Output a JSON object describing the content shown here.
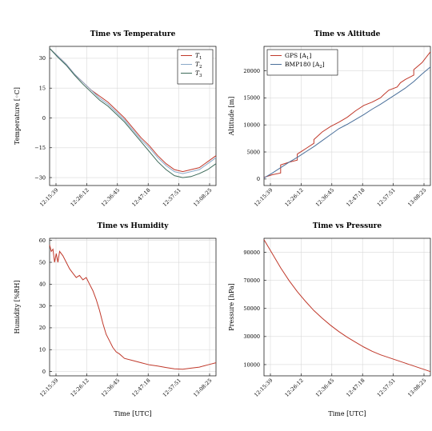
{
  "colors": {
    "red": "#c0392b",
    "blue": "#4a6f9a",
    "gray": "#888888",
    "darkgreen": "#3d6b5a",
    "lightblue": "#8aa8c8"
  },
  "time_ticks": [
    "12:15:39",
    "12:26:12",
    "12:36:45",
    "12:47:18",
    "12:57:51",
    "13:08:25"
  ],
  "chart_data": [
    {
      "id": "temperature",
      "type": "line",
      "title": "Time vs Temperature",
      "xlabel": "",
      "ylabel": "Temperature [◦C]",
      "xlim": [
        0,
        1
      ],
      "ylim": [
        -34,
        36
      ],
      "yticks": [
        30,
        15,
        0,
        -15,
        -30
      ],
      "ytick_labels": [
        "30",
        "15",
        "0",
        "−15",
        "−30"
      ],
      "legend": "top-right",
      "grid": true,
      "series": [
        {
          "name": "T",
          "sub": "1",
          "color": "red",
          "x": [
            0,
            0.05,
            0.1,
            0.15,
            0.2,
            0.25,
            0.3,
            0.35,
            0.4,
            0.45,
            0.5,
            0.55,
            0.6,
            0.65,
            0.7,
            0.75,
            0.8,
            0.85,
            0.9,
            0.95,
            1.0
          ],
          "y": [
            35,
            31,
            27,
            22,
            18,
            14,
            11,
            8,
            4,
            0,
            -5,
            -10,
            -14,
            -19,
            -23,
            -26,
            -27,
            -26,
            -25,
            -22,
            -19
          ]
        },
        {
          "name": "T",
          "sub": "2",
          "color": "lightblue",
          "x": [
            0,
            0.05,
            0.1,
            0.15,
            0.2,
            0.25,
            0.3,
            0.35,
            0.4,
            0.45,
            0.5,
            0.55,
            0.6,
            0.65,
            0.7,
            0.75,
            0.8,
            0.85,
            0.9,
            0.95,
            1.0
          ],
          "y": [
            35,
            31,
            27,
            22,
            18,
            14,
            10,
            7,
            3,
            -1,
            -6,
            -11,
            -15,
            -20,
            -24,
            -27,
            -28,
            -27,
            -26,
            -23,
            -20
          ]
        },
        {
          "name": "T",
          "sub": "3",
          "color": "darkgreen",
          "x": [
            0,
            0.05,
            0.1,
            0.15,
            0.2,
            0.25,
            0.3,
            0.35,
            0.4,
            0.45,
            0.5,
            0.55,
            0.6,
            0.65,
            0.7,
            0.75,
            0.8,
            0.85,
            0.9,
            0.95,
            1.0
          ],
          "y": [
            35,
            30.5,
            26.5,
            21.5,
            17,
            13,
            9,
            6,
            2,
            -2,
            -7,
            -12,
            -17,
            -22,
            -26,
            -29,
            -30,
            -29.5,
            -28,
            -26,
            -23
          ]
        }
      ]
    },
    {
      "id": "altitude",
      "type": "line",
      "title": "Time vs Altitude",
      "xlabel": "",
      "ylabel": "Altitude [m]",
      "xlim": [
        0,
        1
      ],
      "ylim": [
        -1200,
        24500
      ],
      "yticks": [
        20000,
        15000,
        10000,
        5000,
        0
      ],
      "ytick_labels": [
        "20000",
        "15000",
        "10000",
        "5000",
        "0"
      ],
      "legend": "top-left",
      "grid": true,
      "series": [
        {
          "name": "GPS [A",
          "sub": "1",
          "color": "red",
          "x": [
            0,
            0.05,
            0.1,
            0.1,
            0.15,
            0.2,
            0.2,
            0.25,
            0.3,
            0.3,
            0.35,
            0.4,
            0.45,
            0.5,
            0.55,
            0.6,
            0.65,
            0.7,
            0.72,
            0.75,
            0.8,
            0.82,
            0.85,
            0.9,
            0.9,
            0.95,
            1.0
          ],
          "y": [
            300,
            800,
            1100,
            2600,
            3100,
            3500,
            4600,
            5600,
            6600,
            7300,
            8700,
            9700,
            10500,
            11400,
            12600,
            13600,
            14200,
            15000,
            15600,
            16400,
            17000,
            17800,
            18400,
            19200,
            20200,
            21500,
            23500
          ]
        },
        {
          "name": "BMP180 [A",
          "sub": "2",
          "color": "blue",
          "x": [
            0,
            0.05,
            0.1,
            0.15,
            0.2,
            0.25,
            0.3,
            0.35,
            0.4,
            0.45,
            0.5,
            0.55,
            0.6,
            0.65,
            0.7,
            0.75,
            0.8,
            0.85,
            0.9,
            0.95,
            1.0
          ],
          "y": [
            200,
            1100,
            2100,
            3100,
            4000,
            5000,
            6000,
            7100,
            8200,
            9300,
            10100,
            11000,
            11900,
            12900,
            13800,
            14800,
            15800,
            16800,
            18000,
            19400,
            20700
          ]
        }
      ]
    },
    {
      "id": "humidity",
      "type": "line",
      "title": "Time vs Humidity",
      "xlabel": "Time [UTC]",
      "ylabel": "Humidity [%RH]",
      "xlim": [
        0,
        1
      ],
      "ylim": [
        -2,
        61
      ],
      "yticks": [
        60,
        50,
        40,
        30,
        20,
        10,
        0
      ],
      "ytick_labels": [
        "60",
        "50",
        "40",
        "30",
        "20",
        "10",
        "0"
      ],
      "legend": "none",
      "grid": true,
      "series": [
        {
          "name": "",
          "color": "red",
          "x": [
            0,
            0.01,
            0.02,
            0.03,
            0.04,
            0.05,
            0.06,
            0.08,
            0.1,
            0.12,
            0.14,
            0.16,
            0.18,
            0.2,
            0.22,
            0.24,
            0.26,
            0.28,
            0.3,
            0.32,
            0.34,
            0.36,
            0.38,
            0.4,
            0.42,
            0.45,
            0.5,
            0.55,
            0.6,
            0.65,
            0.7,
            0.75,
            0.8,
            0.85,
            0.9,
            0.95,
            1.0
          ],
          "y": [
            58,
            55,
            56,
            50,
            54,
            50,
            55,
            53,
            50,
            47,
            45,
            43,
            44,
            42,
            43,
            40,
            37,
            33,
            28,
            22,
            17,
            14,
            11,
            9,
            8,
            6,
            5,
            4,
            3,
            2.5,
            1.8,
            1.2,
            1.0,
            1.5,
            2.0,
            3.0,
            4.0
          ]
        }
      ]
    },
    {
      "id": "pressure",
      "type": "line",
      "title": "Time vs Pressure",
      "xlabel": "Time [UTC]",
      "ylabel": "Pressure [hPa]",
      "xlim": [
        0,
        1
      ],
      "ylim": [
        2000,
        100000
      ],
      "yticks": [
        90000,
        70000,
        50000,
        30000,
        10000
      ],
      "ytick_labels": [
        "90000",
        "70000",
        "50000",
        "30000",
        "10000"
      ],
      "legend": "none",
      "grid": true,
      "series": [
        {
          "name": "",
          "color": "red",
          "x": [
            0,
            0.05,
            0.1,
            0.15,
            0.2,
            0.25,
            0.3,
            0.35,
            0.4,
            0.45,
            0.5,
            0.55,
            0.6,
            0.65,
            0.7,
            0.75,
            0.8,
            0.85,
            0.9,
            0.95,
            1.0
          ],
          "y": [
            99000,
            89000,
            79000,
            70000,
            62000,
            55000,
            48500,
            43000,
            38000,
            33500,
            29500,
            26000,
            22500,
            19500,
            17000,
            15000,
            13000,
            11000,
            9000,
            7000,
            5000
          ]
        }
      ]
    }
  ]
}
